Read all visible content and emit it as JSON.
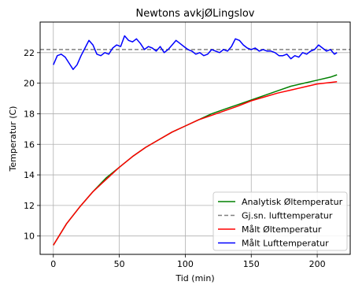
{
  "chart_data": {
    "type": "line",
    "title": "Newtons avkjØLingslov",
    "xlabel": "Tid (min)",
    "ylabel": "Temperatur (C)",
    "xlim": [
      -10,
      225
    ],
    "ylim": [
      8.8,
      24.0
    ],
    "xticks": [
      0,
      50,
      100,
      150,
      200
    ],
    "yticks": [
      10,
      12,
      14,
      16,
      18,
      20,
      22
    ],
    "grid": true,
    "legend_position": "lower-right",
    "series": [
      {
        "name": "Analytisk Øltemperatur",
        "color": "#008000",
        "style": "solid",
        "x": [
          0,
          10,
          20,
          30,
          40,
          50,
          60,
          70,
          80,
          90,
          100,
          110,
          120,
          130,
          140,
          150,
          160,
          170,
          180,
          190,
          200,
          210,
          215
        ],
        "y": [
          9.4,
          10.8,
          11.9,
          12.9,
          13.8,
          14.5,
          15.2,
          15.8,
          16.3,
          16.8,
          17.2,
          17.6,
          18.0,
          18.3,
          18.6,
          18.9,
          19.2,
          19.5,
          19.8,
          20.0,
          20.2,
          20.4,
          20.55
        ]
      },
      {
        "name": "Gj.sn. lufttemperatur",
        "color": "#808080",
        "style": "dashed",
        "x": [
          -10,
          225
        ],
        "y": [
          22.2,
          22.2
        ]
      },
      {
        "name": "Målt Øltemperatur",
        "color": "#ff0000",
        "style": "solid",
        "x": [
          0,
          10,
          20,
          30,
          40,
          50,
          60,
          70,
          80,
          90,
          100,
          110,
          120,
          130,
          140,
          150,
          160,
          170,
          180,
          190,
          200,
          210,
          215
        ],
        "y": [
          9.4,
          10.8,
          11.9,
          12.9,
          13.7,
          14.5,
          15.2,
          15.8,
          16.3,
          16.8,
          17.2,
          17.6,
          17.9,
          18.2,
          18.5,
          18.85,
          19.1,
          19.35,
          19.55,
          19.75,
          19.95,
          20.05,
          20.1
        ]
      },
      {
        "name": "Målt Lufttemperatur",
        "color": "#0000ff",
        "style": "solid",
        "x": [
          0,
          3,
          6,
          9,
          12,
          15,
          18,
          21,
          24,
          27,
          30,
          33,
          36,
          39,
          42,
          45,
          48,
          51,
          54,
          57,
          60,
          63,
          66,
          69,
          72,
          75,
          78,
          81,
          84,
          87,
          90,
          93,
          96,
          99,
          102,
          105,
          108,
          111,
          114,
          117,
          120,
          123,
          126,
          129,
          132,
          135,
          138,
          141,
          144,
          147,
          150,
          153,
          156,
          159,
          162,
          165,
          168,
          171,
          174,
          177,
          180,
          183,
          186,
          189,
          192,
          195,
          198,
          201,
          204,
          207,
          210,
          213,
          215
        ],
        "y": [
          21.2,
          21.8,
          21.9,
          21.7,
          21.3,
          20.9,
          21.2,
          21.8,
          22.3,
          22.8,
          22.5,
          21.9,
          21.8,
          22.0,
          21.9,
          22.3,
          22.5,
          22.4,
          23.1,
          22.8,
          22.7,
          22.9,
          22.6,
          22.2,
          22.4,
          22.3,
          22.1,
          22.4,
          22.0,
          22.2,
          22.5,
          22.8,
          22.6,
          22.4,
          22.2,
          22.1,
          21.9,
          22.0,
          21.8,
          21.9,
          22.2,
          22.1,
          22.0,
          22.2,
          22.1,
          22.4,
          22.9,
          22.8,
          22.5,
          22.3,
          22.2,
          22.3,
          22.1,
          22.2,
          22.1,
          22.1,
          22.0,
          21.8,
          21.8,
          21.9,
          21.6,
          21.8,
          21.7,
          22.0,
          21.9,
          22.1,
          22.2,
          22.5,
          22.3,
          22.1,
          22.2,
          21.9,
          22.0
        ]
      }
    ]
  }
}
